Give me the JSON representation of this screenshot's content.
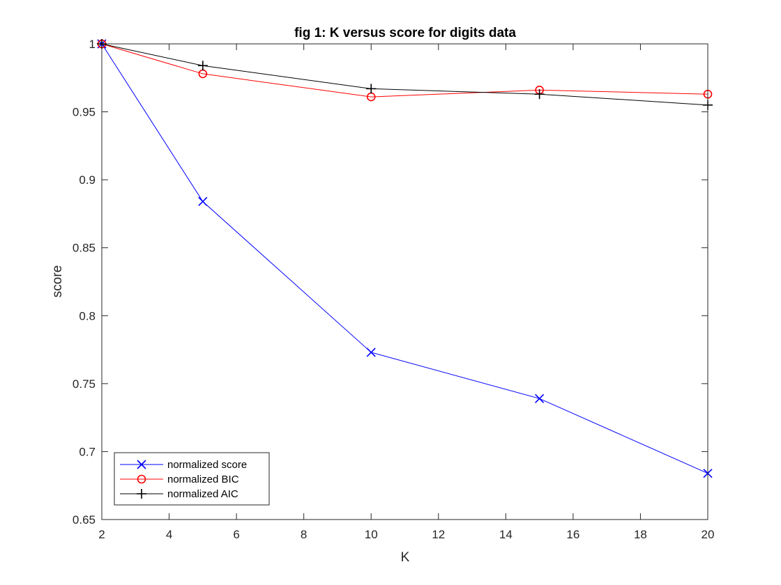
{
  "chart_data": {
    "type": "line",
    "title": "fig 1: K versus score for digits data",
    "xlabel": "K",
    "ylabel": "score",
    "xlim": [
      2,
      20
    ],
    "ylim": [
      0.65,
      1
    ],
    "xticks": [
      2,
      4,
      6,
      8,
      10,
      12,
      14,
      16,
      18,
      20
    ],
    "yticks": [
      0.65,
      0.7,
      0.75,
      0.8,
      0.85,
      0.9,
      0.95,
      1
    ],
    "ytick_labels": [
      "0.65",
      "0.7",
      "0.75",
      "0.8",
      "0.85",
      "0.9",
      "0.95",
      "1"
    ],
    "grid": false,
    "legend_position": "bottom-left",
    "x": [
      2,
      5,
      10,
      15,
      20
    ],
    "series": [
      {
        "name": "normalized score",
        "values": [
          1.0,
          0.884,
          0.773,
          0.739,
          0.684
        ],
        "color": "#0000ff",
        "marker": "x"
      },
      {
        "name": "normalized BIC",
        "values": [
          1.0,
          0.978,
          0.961,
          0.966,
          0.963
        ],
        "color": "#ff0000",
        "marker": "o"
      },
      {
        "name": "normalized AIC",
        "values": [
          1.0,
          0.984,
          0.967,
          0.963,
          0.955
        ],
        "color": "#000000",
        "marker": "+"
      }
    ]
  }
}
